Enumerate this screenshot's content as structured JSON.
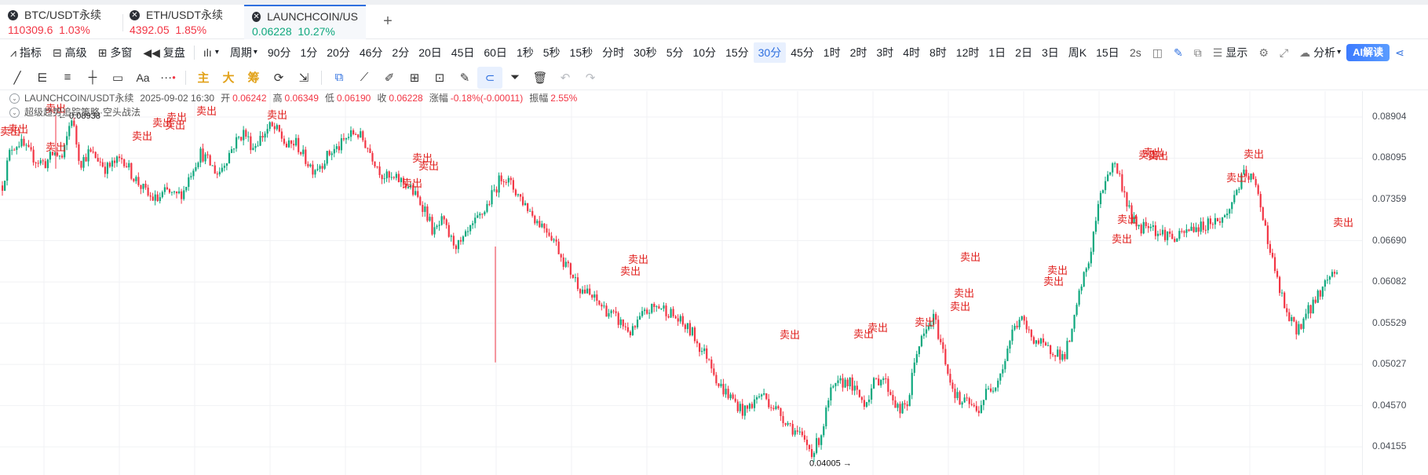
{
  "tabs": [
    {
      "name": "BTC/USDT永续",
      "price": "110309.6",
      "change": "1.03%"
    },
    {
      "name": "ETH/USDT永续",
      "price": "4392.05",
      "change": "1.85%"
    },
    {
      "name": "LAUNCHCOIN/US",
      "price": "0.06228",
      "change": "10.27%"
    }
  ],
  "toolbar": {
    "indicators": "指标",
    "advanced": "高级",
    "multi_window": "多窗",
    "replay": "复盘",
    "period": "周期",
    "periods": [
      "90分",
      "1分",
      "20分",
      "46分",
      "2分",
      "20日",
      "45日",
      "60日",
      "1秒",
      "5秒",
      "15秒",
      "分时",
      "30秒",
      "5分",
      "10分",
      "15分",
      "30分",
      "45分",
      "1时",
      "2时",
      "3时",
      "4时",
      "8时",
      "12时",
      "1日",
      "2日",
      "3日",
      "周K",
      "15日"
    ],
    "selected_period": "30分",
    "refresh": "2s",
    "display": "显示",
    "analysis": "分析",
    "ai": "AI解读"
  },
  "drawing_tools": {
    "main": "主",
    "big": "大",
    "chips": "筹",
    "text_tool": "Aa"
  },
  "legend": {
    "symbol": "LAUNCHCOIN/USDT永续",
    "datetime": "2025-09-02 16:30",
    "open_label": "开",
    "open": "0.06242",
    "high_label": "高",
    "high": "0.06349",
    "low_label": "低",
    "low": "0.06190",
    "close_label": "收",
    "close": "0.06228",
    "change_label": "涨幅",
    "change": "-0.18%(-0.00011)",
    "amplitude_label": "振幅",
    "amplitude": "2.55%",
    "strategy": "超级趋势追踪策略·空头战法"
  },
  "price_axis": [
    "0.08904",
    "0.08095",
    "0.07359",
    "0.06690",
    "0.06082",
    "0.05529",
    "0.05027",
    "0.04570",
    "0.04155"
  ],
  "markers": {
    "high": "← 0.08938",
    "low": "0.04005 →",
    "signal": "卖出"
  },
  "colors": {
    "up": "#0fa87e",
    "down": "#f23645",
    "accent": "#2e6fdf"
  },
  "chart_data": {
    "type": "candlestick",
    "log_scale": true,
    "ylim": [
      0.0395,
      0.0935
    ],
    "price_trace": [
      0.076,
      0.083,
      0.084,
      0.082,
      0.0805,
      0.08,
      0.082,
      0.0808,
      0.0893,
      0.08,
      0.082,
      0.081,
      0.079,
      0.08,
      0.081,
      0.078,
      0.076,
      0.074,
      0.0735,
      0.075,
      0.074,
      0.075,
      0.079,
      0.082,
      0.08,
      0.078,
      0.081,
      0.084,
      0.086,
      0.083,
      0.085,
      0.087,
      0.086,
      0.083,
      0.084,
      0.081,
      0.079,
      0.08,
      0.082,
      0.083,
      0.085,
      0.086,
      0.084,
      0.081,
      0.078,
      0.077,
      0.077,
      0.076,
      0.074,
      0.072,
      0.068,
      0.07,
      0.067,
      0.066,
      0.068,
      0.07,
      0.072,
      0.075,
      0.078,
      0.076,
      0.074,
      0.072,
      0.07,
      0.069,
      0.067,
      0.064,
      0.062,
      0.06,
      0.059,
      0.058,
      0.057,
      0.056,
      0.055,
      0.054,
      0.056,
      0.057,
      0.0575,
      0.057,
      0.056,
      0.055,
      0.054,
      0.052,
      0.051,
      0.048,
      0.047,
      0.046,
      0.045,
      0.046,
      0.047,
      0.046,
      0.045,
      0.044,
      0.043,
      0.042,
      0.041,
      0.043,
      0.047,
      0.048,
      0.0485,
      0.047,
      0.046,
      0.048,
      0.049,
      0.047,
      0.045,
      0.046,
      0.052,
      0.054,
      0.056,
      0.052,
      0.048,
      0.046,
      0.046,
      0.045,
      0.047,
      0.048,
      0.05,
      0.054,
      0.056,
      0.054,
      0.053,
      0.052,
      0.052,
      0.051,
      0.054,
      0.06,
      0.064,
      0.072,
      0.078,
      0.08,
      0.075,
      0.07,
      0.069,
      0.07,
      0.068,
      0.068,
      0.067,
      0.068,
      0.069,
      0.069,
      0.07,
      0.07,
      0.071,
      0.075,
      0.078,
      0.077,
      0.072,
      0.065,
      0.06,
      0.056,
      0.0545,
      0.056,
      0.058,
      0.06,
      0.062,
      0.0625
    ],
    "trace_start": "2025-09-02 16:30",
    "high_point": 0.08938,
    "low_point": 0.04005,
    "sell_signals": 33
  }
}
